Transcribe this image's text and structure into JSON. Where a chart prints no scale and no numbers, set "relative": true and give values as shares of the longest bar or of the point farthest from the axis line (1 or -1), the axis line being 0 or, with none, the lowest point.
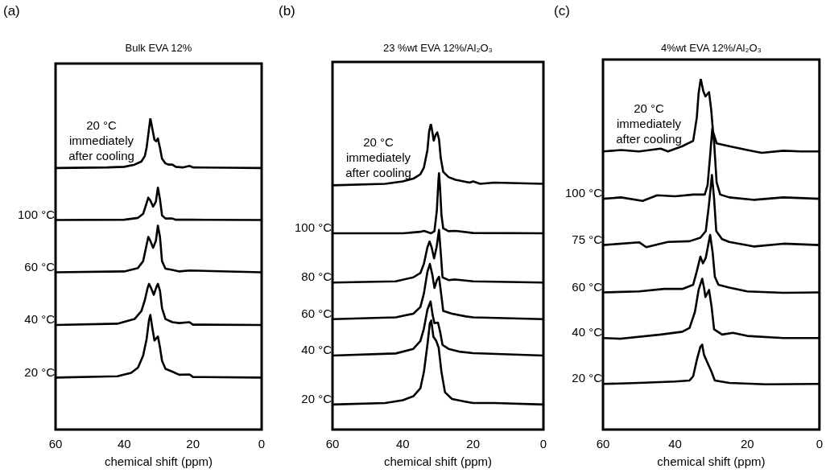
{
  "chart_data": [
    {
      "type": "line",
      "title": "Bulk EVA 12%",
      "xlabel": "chemical shift (ppm)",
      "annotations": [
        "(a)"
      ],
      "relative": true,
      "tick_labels": "x",
      "xlim": [
        60,
        0
      ],
      "xticks": [
        60,
        40,
        20,
        0
      ],
      "series": [
        {
          "name": "20 °C immediately after cooling",
          "color": "#000000",
          "x": [
            60,
            45,
            40,
            37,
            35,
            34,
            33.5,
            33,
            32.4,
            31.8,
            31.2,
            30.7,
            30.2,
            29.6,
            29,
            28,
            27,
            26,
            25,
            23,
            21,
            20,
            10,
            0
          ],
          "values": [
            0.84,
            0.842,
            0.844,
            0.851,
            0.861,
            0.879,
            0.905,
            0.948,
            1.0,
            0.965,
            0.931,
            0.926,
            0.935,
            0.905,
            0.87,
            0.855,
            0.851,
            0.851,
            0.844,
            0.842,
            0.847,
            0.842,
            0.841,
            0.84
          ]
        },
        {
          "name": "100 °C",
          "color": "#000000",
          "x": [
            60,
            40,
            36,
            34.5,
            33.5,
            33,
            32.4,
            31.6,
            30.8,
            30.2,
            29.6,
            29,
            28,
            26,
            25,
            21,
            0
          ],
          "values": [
            0.673,
            0.674,
            0.68,
            0.693,
            0.727,
            0.745,
            0.736,
            0.716,
            0.732,
            0.777,
            0.74,
            0.688,
            0.678,
            0.678,
            0.674,
            0.674,
            0.673
          ]
        },
        {
          "name": "60 °C",
          "color": "#000000",
          "x": [
            60,
            40,
            36,
            34.5,
            33.5,
            33,
            32.4,
            31.6,
            30.8,
            30.2,
            29.6,
            29,
            28,
            26,
            24,
            21,
            0
          ],
          "values": [
            0.505,
            0.508,
            0.519,
            0.541,
            0.593,
            0.619,
            0.606,
            0.584,
            0.606,
            0.655,
            0.619,
            0.541,
            0.517,
            0.513,
            0.508,
            0.511,
            0.505
          ]
        },
        {
          "name": "40 °C",
          "color": "#000000",
          "x": [
            60,
            42,
            37,
            35,
            34,
            33.2,
            32.8,
            32.2,
            31.4,
            30.6,
            30.2,
            29.6,
            29,
            28,
            26,
            24,
            21,
            20,
            0
          ],
          "values": [
            0.336,
            0.34,
            0.355,
            0.381,
            0.416,
            0.455,
            0.468,
            0.455,
            0.433,
            0.459,
            0.468,
            0.446,
            0.39,
            0.355,
            0.345,
            0.342,
            0.345,
            0.337,
            0.336
          ]
        },
        {
          "name": "20 °C",
          "color": "#000000",
          "x": [
            60,
            42,
            38,
            36,
            34.5,
            33.5,
            32.8,
            32.4,
            31.8,
            31.2,
            30.6,
            30.2,
            29.6,
            29,
            28,
            26,
            24,
            21,
            20,
            0
          ],
          "values": [
            0.167,
            0.171,
            0.182,
            0.199,
            0.238,
            0.29,
            0.351,
            0.368,
            0.325,
            0.286,
            0.294,
            0.299,
            0.264,
            0.221,
            0.195,
            0.186,
            0.176,
            0.177,
            0.169,
            0.167
          ]
        }
      ]
    },
    {
      "type": "line",
      "title": "23 %wt EVA 12%/Al₂O₃",
      "xlabel": "chemical shift (ppm)",
      "annotations": [
        "(b)"
      ],
      "relative": true,
      "tick_labels": "x",
      "xlim": [
        60,
        0
      ],
      "xticks": [
        60,
        40,
        20,
        0
      ],
      "series": [
        {
          "name": "20 °C immediately after cooling",
          "color": "#000000",
          "x": [
            60,
            45,
            40,
            37,
            35,
            34,
            33,
            32.5,
            32,
            31.5,
            31.2,
            30.7,
            30.2,
            29.7,
            29.2,
            28.5,
            27,
            25,
            21,
            20,
            18,
            14,
            0
          ],
          "values": [
            0.799,
            0.804,
            0.812,
            0.821,
            0.835,
            0.857,
            0.914,
            0.976,
            1.0,
            0.967,
            0.945,
            0.963,
            0.972,
            0.95,
            0.888,
            0.843,
            0.826,
            0.817,
            0.808,
            0.812,
            0.804,
            0.808,
            0.804
          ]
        },
        {
          "name": "100 °C",
          "color": "#000000",
          "x": [
            60,
            40,
            35,
            34,
            32,
            31,
            30.3,
            29.9,
            29.7,
            29.4,
            29,
            28.5,
            27,
            25,
            20,
            0
          ],
          "values": [
            0.642,
            0.642,
            0.647,
            0.65,
            0.642,
            0.649,
            0.719,
            0.808,
            0.839,
            0.79,
            0.702,
            0.658,
            0.649,
            0.65,
            0.643,
            0.642
          ]
        },
        {
          "name": "80 °C",
          "color": "#000000",
          "x": [
            60,
            42,
            37,
            35,
            34,
            33,
            32.4,
            31.8,
            31.1,
            30.4,
            29.7,
            29.2,
            28.7,
            27,
            25,
            20,
            0
          ],
          "values": [
            0.481,
            0.485,
            0.498,
            0.512,
            0.542,
            0.596,
            0.615,
            0.596,
            0.56,
            0.596,
            0.653,
            0.578,
            0.498,
            0.489,
            0.491,
            0.485,
            0.481
          ]
        },
        {
          "name": "60 °C",
          "color": "#000000",
          "x": [
            60,
            42,
            37,
            35,
            34,
            33,
            32.3,
            31.6,
            31,
            30.3,
            29.7,
            29.2,
            28.5,
            26,
            22,
            20,
            0
          ],
          "values": [
            0.361,
            0.367,
            0.379,
            0.401,
            0.445,
            0.516,
            0.542,
            0.507,
            0.463,
            0.489,
            0.5,
            0.454,
            0.388,
            0.379,
            0.37,
            0.367,
            0.361
          ]
        },
        {
          "name": "40 °C",
          "color": "#000000",
          "x": [
            60,
            42,
            37,
            35,
            34,
            33,
            32.1,
            31.5,
            31,
            30,
            29.4,
            28.7,
            27,
            24,
            20,
            0
          ],
          "values": [
            0.242,
            0.249,
            0.264,
            0.29,
            0.33,
            0.392,
            0.419,
            0.374,
            0.348,
            0.35,
            0.321,
            0.277,
            0.264,
            0.255,
            0.25,
            0.242
          ]
        },
        {
          "name": "20 °C",
          "color": "#000000",
          "x": [
            60,
            45,
            40,
            37,
            35,
            34,
            33,
            32.3,
            31.9,
            31.3,
            30.5,
            29.8,
            29,
            28,
            26,
            22,
            20,
            14,
            0
          ],
          "values": [
            0.082,
            0.087,
            0.096,
            0.109,
            0.135,
            0.188,
            0.277,
            0.348,
            0.357,
            0.304,
            0.29,
            0.268,
            0.188,
            0.122,
            0.1,
            0.091,
            0.087,
            0.087,
            0.082
          ]
        }
      ]
    },
    {
      "type": "line",
      "title": "4%wt EVA 12%/Al₂O₃",
      "xlabel": "chemical shift (ppm)",
      "annotations": [
        "(c)"
      ],
      "relative": true,
      "tick_labels": "x",
      "xlim": [
        60,
        0
      ],
      "xticks": [
        60,
        40,
        20,
        0
      ],
      "series": [
        {
          "name": "20 °C immediately after cooling",
          "color": "#000000",
          "x": [
            60,
            55,
            50,
            44,
            42,
            38,
            35,
            34,
            33.5,
            32.9,
            32.2,
            31.6,
            30.6,
            30,
            29.5,
            28.5,
            25,
            20,
            16,
            10,
            5,
            0
          ],
          "values": [
            0.793,
            0.797,
            0.793,
            0.801,
            0.793,
            0.808,
            0.823,
            0.889,
            0.958,
            1.0,
            0.965,
            0.95,
            0.962,
            0.912,
            0.85,
            0.816,
            0.808,
            0.797,
            0.789,
            0.795,
            0.793,
            0.793
          ]
        },
        {
          "name": "100 °C",
          "color": "#000000",
          "x": [
            60,
            55,
            49,
            45,
            40,
            35,
            31.8,
            31,
            30.3,
            29.7,
            29.2,
            28.5,
            27.5,
            25,
            18,
            10,
            0
          ],
          "values": [
            0.658,
            0.662,
            0.652,
            0.668,
            0.665,
            0.67,
            0.67,
            0.697,
            0.781,
            0.858,
            0.82,
            0.705,
            0.67,
            0.662,
            0.655,
            0.662,
            0.658
          ]
        },
        {
          "name": "75 °C",
          "color": "#000000",
          "x": [
            60,
            50,
            48,
            42,
            36,
            33,
            31.5,
            30.6,
            29.8,
            29.2,
            28.6,
            27,
            25,
            18,
            10,
            0
          ],
          "values": [
            0.526,
            0.534,
            0.52,
            0.535,
            0.537,
            0.547,
            0.566,
            0.643,
            0.726,
            0.658,
            0.566,
            0.543,
            0.535,
            0.522,
            0.53,
            0.526
          ]
        },
        {
          "name": "60 °C",
          "color": "#000000",
          "x": [
            60,
            50,
            43,
            38,
            35,
            34,
            33,
            32.3,
            31.5,
            30.3,
            29.6,
            29,
            28,
            25,
            20,
            10,
            0
          ],
          "values": [
            0.391,
            0.394,
            0.401,
            0.401,
            0.413,
            0.451,
            0.493,
            0.474,
            0.49,
            0.555,
            0.505,
            0.436,
            0.413,
            0.405,
            0.394,
            0.39,
            0.391
          ]
        },
        {
          "name": "40 °C",
          "color": "#000000",
          "x": [
            60,
            55,
            44,
            38,
            36,
            34.5,
            33.5,
            32.5,
            32,
            31.6,
            30.6,
            29.9,
            29.2,
            27,
            24,
            20,
            10,
            0
          ],
          "values": [
            0.261,
            0.259,
            0.271,
            0.279,
            0.29,
            0.336,
            0.398,
            0.43,
            0.405,
            0.378,
            0.398,
            0.351,
            0.286,
            0.271,
            0.276,
            0.267,
            0.261,
            0.261
          ]
        },
        {
          "name": "20 °C",
          "color": "#000000",
          "x": [
            60,
            50,
            40,
            36,
            35,
            34,
            33,
            32.5,
            32,
            31,
            30,
            29,
            25,
            15,
            0
          ],
          "values": [
            0.13,
            0.133,
            0.137,
            0.14,
            0.152,
            0.198,
            0.236,
            0.242,
            0.213,
            0.19,
            0.167,
            0.14,
            0.133,
            0.129,
            0.13
          ]
        }
      ]
    }
  ]
}
